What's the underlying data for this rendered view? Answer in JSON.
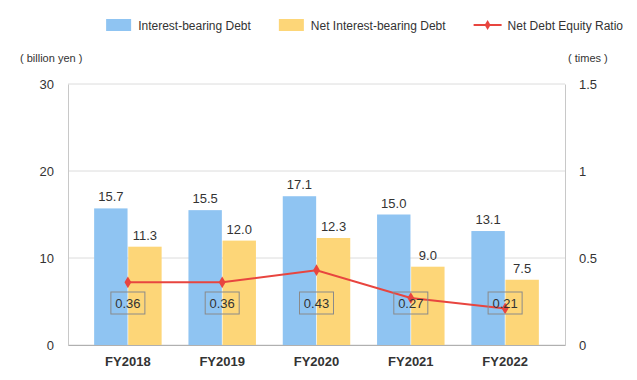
{
  "chart_data": {
    "type": "bar",
    "categories": [
      "FY2018",
      "FY2019",
      "FY2020",
      "FY2021",
      "FY2022"
    ],
    "series": [
      {
        "name": "Interest-bearing Debt",
        "type": "bar",
        "color": "#8fc4f2",
        "values": [
          15.7,
          15.5,
          17.1,
          15.0,
          13.1
        ],
        "value_labels": [
          "15.7",
          "15.5",
          "17.1",
          "15.0",
          "13.1"
        ]
      },
      {
        "name": "Net Interest-bearing Debt",
        "type": "bar",
        "color": "#fdd678",
        "values": [
          11.3,
          12.0,
          12.3,
          9.0,
          7.5
        ],
        "value_labels": [
          "11.3",
          "12.0",
          "12.3",
          "9.0",
          "7.5"
        ]
      },
      {
        "name": "Net Debt Equity Ratio",
        "type": "line",
        "color": "#e8453f",
        "axis": "y2",
        "marker": "diamond",
        "line_style": "solid",
        "values": [
          0.36,
          0.36,
          0.43,
          0.27,
          0.21
        ]
      }
    ],
    "y_label": "( billion yen )",
    "y2_label": "( times )",
    "ylim": [
      0,
      30
    ],
    "yticks": [
      0,
      10,
      20,
      30
    ],
    "y2lim": [
      0,
      1.5
    ],
    "y2ticks": [
      0,
      0.5,
      1,
      1.5
    ],
    "grid": true,
    "legend": "top-right",
    "data_labels": true
  }
}
